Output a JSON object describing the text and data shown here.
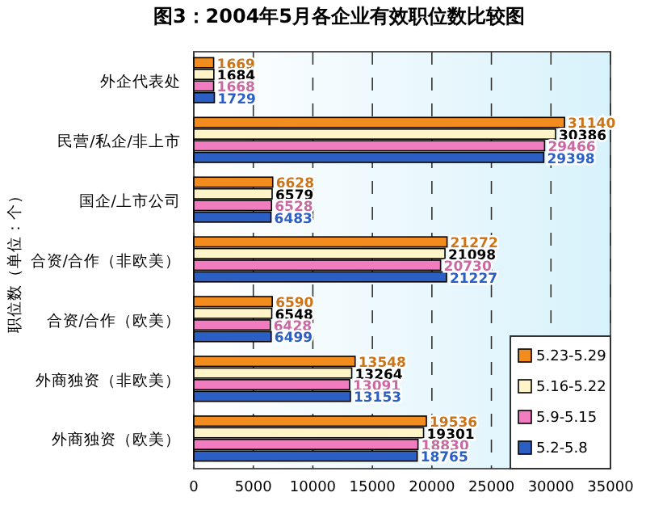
{
  "chart_data": {
    "type": "bar",
    "orientation": "horizontal",
    "title": "图3：2004年5月各企业有效职位数比较图",
    "ylabel": "职位数（单位：个）",
    "categories": [
      "外企代表处",
      "民营/私企/非上市",
      "国企/上市公司",
      "合资/合作（非欧美）",
      "合资/合作（欧美）",
      "外商独资（非欧美）",
      "外商独资（欧美）"
    ],
    "series": [
      {
        "name": "5.23-5.29",
        "color": "#f28c1e",
        "values": [
          1669,
          31140,
          6628,
          21272,
          6590,
          13548,
          19536
        ]
      },
      {
        "name": "5.16-5.22",
        "color": "#fff4c8",
        "values": [
          1684,
          30386,
          6579,
          21098,
          6548,
          13264,
          19301
        ]
      },
      {
        "name": "5.9-5.15",
        "color": "#f27cc0",
        "values": [
          1668,
          29466,
          6528,
          20730,
          6428,
          13091,
          18830
        ]
      },
      {
        "name": "5.2-5.8",
        "color": "#2c5fc4",
        "values": [
          1729,
          29398,
          6483,
          21227,
          6499,
          13153,
          18765
        ]
      }
    ],
    "xlim": [
      0,
      35000
    ],
    "xticks": [
      0,
      5000,
      10000,
      15000,
      20000,
      25000,
      30000,
      35000
    ],
    "grid": "x",
    "legend": "bottom right",
    "data_labels": true
  }
}
